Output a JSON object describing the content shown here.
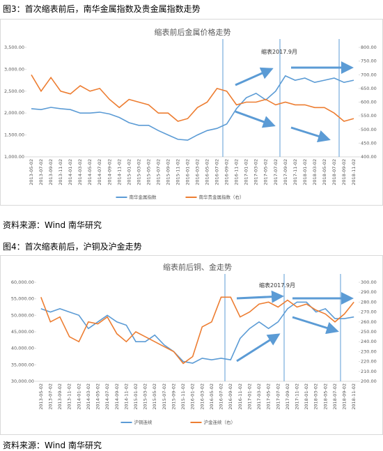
{
  "document": {
    "figure_captions": [
      "图3：首次缩表前后，南华金属指数及贵金属指数走势",
      "图4：首次缩表前后，沪铜及沪金走势"
    ],
    "sources": [
      "资料来源：Wind  南华研究",
      "资料来源：Wind  南华研究"
    ]
  },
  "chart_data": [
    {
      "type": "line",
      "title": "缩表前后金属价格走势",
      "annotations": [
        "缩表2017.9月"
      ],
      "categories": [
        "2013-05-02",
        "2013-07-02",
        "2013-09-02",
        "2013-11-02",
        "2014-01-02",
        "2014-03-02",
        "2014-05-02",
        "2014-07-02",
        "2014-09-02",
        "2014-11-02",
        "2015-01-02",
        "2015-03-02",
        "2015-05-02",
        "2015-07-02",
        "2015-09-02",
        "2015-11-02",
        "2016-01-02",
        "2016-03-02",
        "2016-05-02",
        "2016-07-02",
        "2016-09-02",
        "2016-11-02",
        "2017-01-02",
        "2017-03-02",
        "2017-05-02",
        "2017-07-02",
        "2017-09-02",
        "2017-11-02",
        "2018-01-02",
        "2018-03-02",
        "2018-05-02",
        "2018-07-02",
        "2018-09-02",
        "2018-11-02"
      ],
      "series": [
        {
          "name": "南华金属指数",
          "color": "#5b9bd5",
          "values": [
            2100,
            2080,
            2130,
            2100,
            2080,
            2000,
            2000,
            2020,
            1980,
            1900,
            1780,
            1720,
            1720,
            1600,
            1500,
            1400,
            1380,
            1500,
            1600,
            1650,
            1750,
            2100,
            2350,
            2450,
            2300,
            2500,
            2850,
            2750,
            2800,
            2700,
            2750,
            2800,
            2700,
            2750
          ]
        },
        {
          "name": "南华贵金属指数（右）",
          "color": "#ed7d31",
          "axis": "y2",
          "values": [
            700,
            640,
            690,
            640,
            630,
            660,
            640,
            650,
            610,
            580,
            610,
            600,
            590,
            560,
            560,
            530,
            540,
            580,
            600,
            650,
            640,
            590,
            600,
            600,
            610,
            590,
            600,
            590,
            590,
            580,
            580,
            560,
            530,
            540
          ]
        }
      ],
      "ylim": [
        1000,
        3500
      ],
      "yticks": [
        {
          "value": 1000,
          "label": "1,000.00"
        },
        {
          "value": 1500,
          "label": "1,500.00"
        },
        {
          "value": 2000,
          "label": "2,000.00"
        },
        {
          "value": 2500,
          "label": "2,500.00"
        },
        {
          "value": 3000,
          "label": "3,000.00"
        },
        {
          "value": 3500,
          "label": "3,500.00"
        }
      ],
      "y2lim": [
        400,
        800
      ],
      "y2ticks": [
        {
          "value": 400,
          "label": "400.00"
        },
        {
          "value": 450,
          "label": "450.00"
        },
        {
          "value": 500,
          "label": "500.00"
        },
        {
          "value": 550,
          "label": "550.00"
        },
        {
          "value": 600,
          "label": "600.00"
        },
        {
          "value": 650,
          "label": "650.00"
        },
        {
          "value": 700,
          "label": "700.00"
        },
        {
          "value": 750,
          "label": "750.00"
        },
        {
          "value": 800,
          "label": "800.00"
        }
      ],
      "grid": false,
      "legend": "bottom"
    },
    {
      "type": "line",
      "title": "缩表前后铜、金走势",
      "annotations": [
        "缩表2017.9月"
      ],
      "categories": [
        "2013-05-02",
        "2013-07-02",
        "2013-09-02",
        "2013-11-02",
        "2014-01-02",
        "2014-03-02",
        "2014-05-02",
        "2014-07-02",
        "2014-09-02",
        "2014-11-02",
        "2015-01-02",
        "2015-03-02",
        "2015-05-02",
        "2015-07-02",
        "2015-09-02",
        "2015-11-02",
        "2016-01-02",
        "2016-03-02",
        "2016-05-02",
        "2016-07-02",
        "2016-09-02",
        "2016-11-02",
        "2017-01-02",
        "2017-03-02",
        "2017-05-02",
        "2017-07-02",
        "2017-09-02",
        "2017-11-02",
        "2018-01-02",
        "2018-03-02",
        "2018-05-02",
        "2018-07-02",
        "2018-09-02",
        "2018-11-02"
      ],
      "series": [
        {
          "name": "沪铜连续",
          "color": "#5b9bd5",
          "values": [
            52000,
            51000,
            52000,
            51000,
            50000,
            46000,
            48000,
            50000,
            48000,
            47000,
            42000,
            42000,
            44000,
            41000,
            39000,
            36000,
            35500,
            37000,
            36500,
            37000,
            36500,
            43000,
            46000,
            48000,
            46000,
            48000,
            52000,
            54000,
            54000,
            51000,
            52000,
            49000,
            49000,
            49500
          ]
        },
        {
          "name": "沪金连续（右）",
          "color": "#ed7d31",
          "axis": "y2",
          "values": [
            285,
            260,
            265,
            245,
            240,
            260,
            258,
            265,
            248,
            240,
            250,
            245,
            240,
            235,
            230,
            218,
            225,
            255,
            260,
            285,
            285,
            265,
            270,
            278,
            280,
            275,
            282,
            275,
            278,
            272,
            268,
            260,
            268,
            280
          ]
        }
      ],
      "ylim": [
        30000,
        60000
      ],
      "yticks": [
        {
          "value": 30000,
          "label": "30,000.00"
        },
        {
          "value": 35000,
          "label": "35,000.00"
        },
        {
          "value": 40000,
          "label": "40,000.00"
        },
        {
          "value": 45000,
          "label": "45,000.00"
        },
        {
          "value": 50000,
          "label": "50,000.00"
        },
        {
          "value": 55000,
          "label": "55,000.00"
        },
        {
          "value": 60000,
          "label": "60,000.00"
        }
      ],
      "y2lim": [
        200,
        300
      ],
      "y2ticks": [
        {
          "value": 200,
          "label": "200.00"
        },
        {
          "value": 210,
          "label": "210.00"
        },
        {
          "value": 220,
          "label": "220.00"
        },
        {
          "value": 230,
          "label": "230.00"
        },
        {
          "value": 240,
          "label": "240.00"
        },
        {
          "value": 250,
          "label": "250.00"
        },
        {
          "value": 260,
          "label": "260.00"
        },
        {
          "value": 270,
          "label": "270.00"
        },
        {
          "value": 280,
          "label": "280.00"
        },
        {
          "value": 290,
          "label": "290.00"
        },
        {
          "value": 300,
          "label": "300.00"
        }
      ],
      "grid": false,
      "legend": "bottom"
    }
  ]
}
